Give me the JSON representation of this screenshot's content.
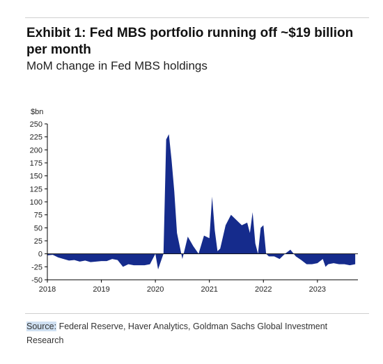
{
  "exhibit": {
    "title": "Exhibit 1: Fed MBS portfolio running off ~$19 billion per month",
    "subtitle": "MoM change in Fed MBS holdings"
  },
  "source": {
    "label": "Source:",
    "text": " Federal Reserve, Haver Analytics, Goldman Sachs Global Investment Research"
  },
  "colors": {
    "fill": "#152b8c",
    "axis": "#000000"
  },
  "chart_data": {
    "type": "area",
    "title": "Exhibit 1: Fed MBS portfolio running off ~$19 billion per month",
    "subtitle": "MoM change in Fed MBS holdings",
    "ylabel": "$bn",
    "xlabel": "",
    "ylim": [
      -50,
      250
    ],
    "xlim": [
      2018.0,
      2023.75
    ],
    "y_ticks": [
      -50,
      -25,
      0,
      25,
      50,
      75,
      100,
      125,
      150,
      175,
      200,
      225,
      250
    ],
    "x_ticks": [
      "2018",
      "2019",
      "2020",
      "2021",
      "2022",
      "2023"
    ],
    "grid": false,
    "legend": "none",
    "series": [
      {
        "x": [
          2018.0,
          2018.1,
          2018.2,
          2018.3,
          2018.4,
          2018.5,
          2018.6,
          2018.7,
          2018.8,
          2018.9,
          2019.0,
          2019.1,
          2019.2,
          2019.3,
          2019.4,
          2019.5,
          2019.6,
          2019.7,
          2019.8,
          2019.9,
          2020.0,
          2020.05,
          2020.15,
          2020.2,
          2020.25,
          2020.3,
          2020.35,
          2020.4,
          2020.5,
          2020.6,
          2020.7,
          2020.8,
          2020.9,
          2021.0,
          2021.05,
          2021.1,
          2021.15,
          2021.2,
          2021.3,
          2021.4,
          2021.5,
          2021.6,
          2021.7,
          2021.75,
          2021.8,
          2021.85,
          2021.9,
          2021.95,
          2022.0,
          2022.05,
          2022.1,
          2022.2,
          2022.3,
          2022.4,
          2022.5,
          2022.6,
          2022.7,
          2022.8,
          2022.9,
          2023.0,
          2023.1,
          2023.15,
          2023.2,
          2023.3,
          2023.4,
          2023.5,
          2023.6,
          2023.7
        ],
        "values": [
          -3,
          -2,
          -7,
          -10,
          -13,
          -12,
          -15,
          -13,
          -16,
          -15,
          -14,
          -14,
          -10,
          -12,
          -25,
          -20,
          -22,
          -22,
          -22,
          -20,
          0,
          -30,
          0,
          220,
          230,
          180,
          120,
          40,
          -10,
          33,
          15,
          0,
          35,
          30,
          110,
          45,
          5,
          10,
          55,
          75,
          65,
          55,
          60,
          40,
          80,
          20,
          0,
          50,
          55,
          0,
          -5,
          -5,
          -10,
          0,
          8,
          -5,
          -12,
          -20,
          -20,
          -18,
          -10,
          -25,
          -20,
          -18,
          -20,
          -20,
          -22,
          -20
        ]
      }
    ]
  }
}
